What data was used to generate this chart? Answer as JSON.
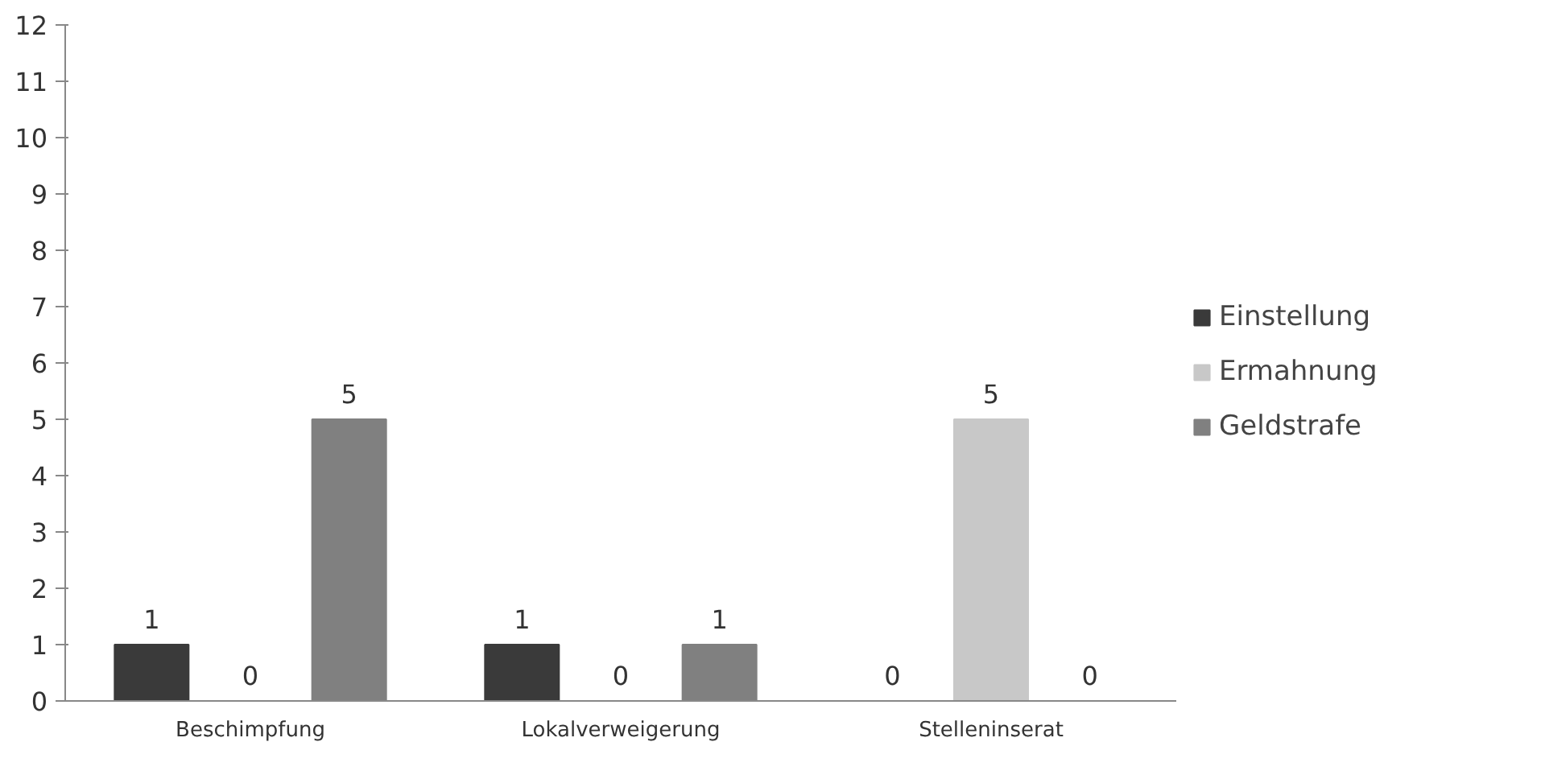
{
  "chart_data": {
    "type": "bar",
    "categories": [
      "Beschimpfung",
      "Lokalverweigerung",
      "Stelleninserat"
    ],
    "series": [
      {
        "name": "Einstellung",
        "color": "#3a3a3a",
        "values": [
          1,
          1,
          0
        ]
      },
      {
        "name": "Ermahnung",
        "color": "#c8c8c8",
        "values": [
          0,
          0,
          5
        ]
      },
      {
        "name": "Geldstrafe",
        "color": "#808080",
        "values": [
          5,
          1,
          0
        ]
      }
    ],
    "ylim": [
      0,
      12
    ],
    "yticks": [
      0,
      1,
      2,
      3,
      4,
      5,
      6,
      7,
      8,
      9,
      10,
      11,
      12
    ],
    "grid": false,
    "legend": "right",
    "data_labels": true
  }
}
